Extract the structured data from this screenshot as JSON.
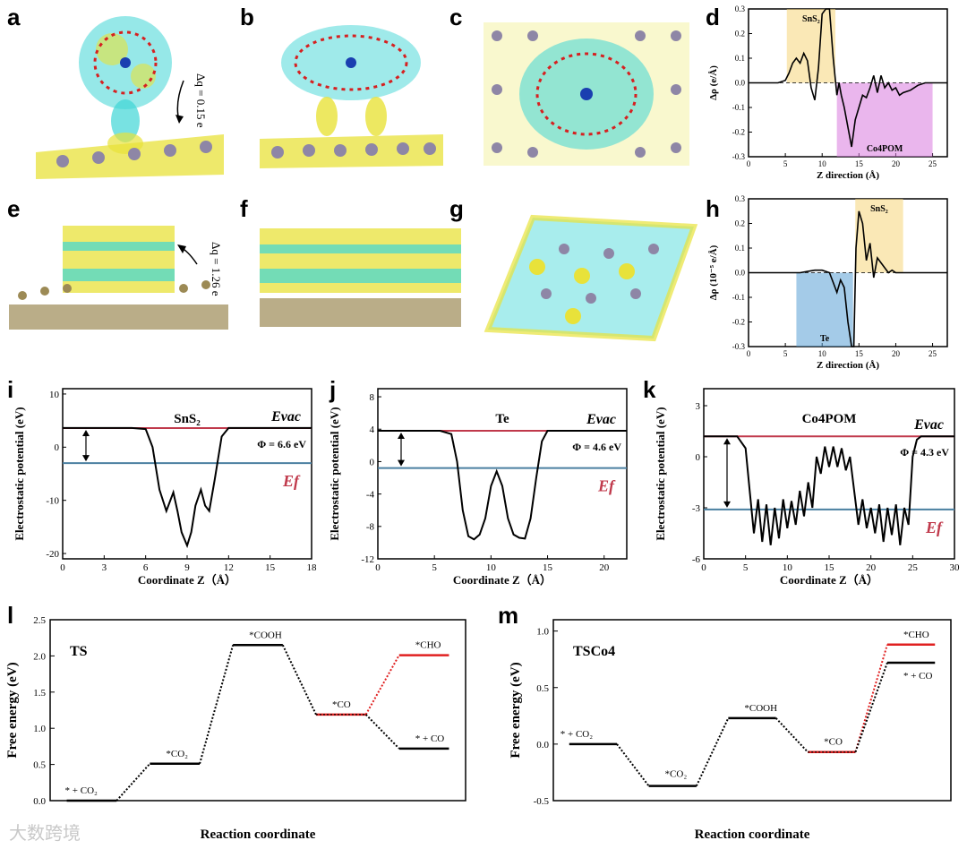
{
  "panels": {
    "a": "a",
    "b": "b",
    "c": "c",
    "d": "d",
    "e": "e",
    "f": "f",
    "g": "g",
    "h": "h",
    "i": "i",
    "j": "j",
    "k": "k",
    "l": "l",
    "m": "m"
  },
  "annotations": {
    "a_charge": "Δq = 0.15 e",
    "e_charge": "Δq = 1.26 e"
  },
  "watermark": "大数跨境",
  "colors": {
    "yellow_iso": "#e8e23a",
    "cyan_iso": "#3fd6d6",
    "sulfur": "#dede2a",
    "tin": "#8e86a6",
    "te": "#9c8a55",
    "oxygen": "#d62020",
    "evac_line": "#c0394b",
    "ef_line": "#4a7fa0",
    "red_path": "#e02020",
    "snS2_band": "#f5d67a",
    "co4pom_band": "#d87adf",
    "te_band": "#5aa0d6"
  },
  "chart_data": [
    {
      "id": "d",
      "type": "line",
      "xlabel": "Z direction (Å)",
      "ylabel": "Δρ (e/Å)",
      "xlim": [
        0,
        27
      ],
      "ylim": [
        -0.3,
        0.3
      ],
      "xticks": [
        "0",
        "5",
        "10",
        "15",
        "20",
        "25"
      ],
      "yticks": [
        "0.3",
        "0.2",
        "0.1",
        "0.0",
        "-0.1",
        "-0.2",
        "-0.3"
      ],
      "bands": [
        {
          "label": "SnS₂",
          "from": 5.2,
          "to": 11.8,
          "sign": "pos"
        },
        {
          "label": "Co4POM",
          "from": 12,
          "to": 25,
          "sign": "neg"
        }
      ],
      "x": [
        0,
        4,
        5,
        5.5,
        6,
        6.5,
        7,
        7.5,
        8,
        8.5,
        9,
        9.5,
        10,
        10.5,
        11,
        11.5,
        12,
        12.3,
        12.6,
        13,
        13.5,
        14,
        14.5,
        15,
        15.5,
        16,
        16.5,
        17,
        17.5,
        18,
        18.5,
        19,
        19.5,
        20,
        20.5,
        21,
        22,
        23,
        24,
        25,
        26,
        27
      ],
      "y": [
        0,
        0,
        0.01,
        0.04,
        0.08,
        0.1,
        0.08,
        0.12,
        0.09,
        -0.02,
        -0.07,
        0.06,
        0.28,
        0.3,
        0.3,
        0.1,
        -0.05,
        0.0,
        -0.05,
        -0.1,
        -0.18,
        -0.26,
        -0.15,
        -0.1,
        -0.05,
        -0.06,
        -0.02,
        0.03,
        -0.04,
        0.03,
        -0.02,
        0.0,
        -0.03,
        -0.02,
        -0.05,
        -0.04,
        -0.03,
        -0.01,
        0,
        0.0,
        0,
        0
      ]
    },
    {
      "id": "h",
      "type": "line",
      "xlabel": "Z direction (Å)",
      "ylabel": "Δρ (10⁻⁵ e/Å)",
      "xlim": [
        0,
        27
      ],
      "ylim": [
        -0.3,
        0.3
      ],
      "xticks": [
        "0",
        "5",
        "10",
        "15",
        "20",
        "25"
      ],
      "yticks": [
        "0.3",
        "0.2",
        "0.1",
        "0.0",
        "-0.1",
        "-0.2",
        "-0.3"
      ],
      "bands": [
        {
          "label": "SnS₂",
          "from": 14.5,
          "to": 21,
          "sign": "pos"
        },
        {
          "label": "Te",
          "from": 6.5,
          "to": 14.2,
          "sign": "neg"
        }
      ],
      "x": [
        0,
        5,
        7,
        8,
        9,
        10,
        11,
        11.5,
        12,
        12.5,
        13,
        13.5,
        14,
        14.3,
        14.6,
        15,
        15.5,
        16,
        16.5,
        17,
        17.5,
        18,
        18.5,
        19,
        19.5,
        20,
        21,
        22,
        23,
        24,
        25,
        26,
        27
      ],
      "y": [
        0,
        0,
        0,
        0.005,
        0.01,
        0.01,
        0.0,
        -0.04,
        -0.08,
        -0.03,
        -0.06,
        -0.2,
        -0.3,
        -0.3,
        0.1,
        0.25,
        0.2,
        0.05,
        0.12,
        -0.02,
        0.06,
        0.04,
        0.02,
        0.0,
        0.01,
        0.0,
        0.0,
        0,
        0,
        0,
        0,
        0,
        0
      ]
    },
    {
      "id": "i",
      "type": "line",
      "title": "SnS₂",
      "xlabel": "Coordinate Z（Å）",
      "ylabel": "Electrostatic potential (eV)",
      "xlim": [
        0,
        18
      ],
      "ylim": [
        -21,
        11
      ],
      "xticks": [
        "0",
        "3",
        "6",
        "9",
        "12",
        "15",
        "18"
      ],
      "yticks": [
        "10",
        "0",
        "-10",
        "-20"
      ],
      "evac": 3.6,
      "ef": -3.0,
      "evac_label": "Evac",
      "ef_label": "Ef",
      "phi_label": "Φ = 6.6 eV",
      "x": [
        0,
        5,
        6,
        6.5,
        7,
        7.5,
        8,
        8.3,
        8.6,
        9,
        9.3,
        9.6,
        10,
        10.3,
        10.6,
        11,
        11.5,
        12,
        13,
        18
      ],
      "y": [
        3.6,
        3.6,
        3.4,
        0,
        -8,
        -12,
        -8.5,
        -12,
        -16,
        -18.5,
        -16,
        -11,
        -8,
        -11,
        -12,
        -6,
        2,
        3.6,
        3.6,
        3.6
      ]
    },
    {
      "id": "j",
      "type": "line",
      "title": "Te",
      "xlabel": "Coordinate Z（Å）",
      "ylabel": "Electrostatic potential (eV)",
      "xlim": [
        0,
        22
      ],
      "ylim": [
        -12,
        9
      ],
      "xticks": [
        "0",
        "5",
        "10",
        "15",
        "20"
      ],
      "yticks": [
        "8",
        "4",
        "0",
        "-4",
        "-8",
        "-12"
      ],
      "evac": 3.8,
      "ef": -0.8,
      "evac_label": "Evac",
      "ef_label": "Ef",
      "phi_label": "Φ = 4.6 eV",
      "x": [
        0,
        5.5,
        6.5,
        7,
        7.5,
        8,
        8.5,
        9,
        9.5,
        10,
        10.5,
        11,
        11.5,
        12,
        12.5,
        13,
        13.5,
        14,
        14.5,
        15,
        16,
        22
      ],
      "y": [
        3.8,
        3.8,
        3.4,
        0,
        -6,
        -9.2,
        -9.6,
        -9.0,
        -7,
        -3,
        -1.2,
        -3,
        -7,
        -9,
        -9.4,
        -9.5,
        -7,
        -2,
        2.5,
        3.8,
        3.8,
        3.8
      ],
      "phi_note": "arrow between Evac and Ef"
    },
    {
      "id": "k",
      "type": "line",
      "title": "Co4POM",
      "xlabel": "Coordinate Z（Å）",
      "ylabel": "Electrostatic potential (eV)",
      "xlim": [
        0,
        30
      ],
      "ylim": [
        -6,
        4
      ],
      "xticks": [
        "0",
        "5",
        "10",
        "15",
        "20",
        "25",
        "30"
      ],
      "yticks": [
        "3",
        "0",
        "-3",
        "-6"
      ],
      "evac": 1.2,
      "ef": -3.1,
      "evac_label": "Evac",
      "ef_label": "Ef",
      "phi_label": "Φ = 4.3 eV",
      "x": [
        0,
        4,
        5,
        5.5,
        6,
        6.5,
        7,
        7.5,
        8,
        8.5,
        9,
        9.5,
        10,
        10.5,
        11,
        11.5,
        12,
        12.5,
        13,
        13.5,
        14,
        14.5,
        15,
        15.5,
        16,
        16.5,
        17,
        17.5,
        18,
        18.5,
        19,
        19.5,
        20,
        20.5,
        21,
        21.5,
        22,
        22.5,
        23,
        23.5,
        24,
        24.5,
        25,
        25.5,
        26,
        30
      ],
      "y": [
        1.2,
        1.2,
        0.5,
        -2,
        -4.5,
        -2.5,
        -5,
        -2.8,
        -5.2,
        -3,
        -4.8,
        -2.5,
        -4.2,
        -2.6,
        -4,
        -2,
        -3.5,
        -1.5,
        -3,
        0,
        -1,
        0.6,
        -0.6,
        0.6,
        -0.6,
        0.5,
        -0.8,
        0,
        -2,
        -4,
        -2.5,
        -4.2,
        -3,
        -4.5,
        -2.8,
        -5,
        -3,
        -4.6,
        -2.8,
        -5.2,
        -3,
        -4,
        0,
        1,
        1.2,
        1.2
      ]
    },
    {
      "id": "l",
      "type": "line",
      "title": "TS",
      "xlabel": "Reaction coordinate",
      "ylabel": "Free energy (eV)",
      "ylim": [
        0,
        2.5
      ],
      "yticks": [
        "0.0",
        "0.5",
        "1.0",
        "1.5",
        "2.0",
        "2.5"
      ],
      "states": [
        {
          "label": "* + CO₂",
          "value": 0.0
        },
        {
          "label": "*CO₂",
          "value": 0.51
        },
        {
          "label": "*COOH",
          "value": 2.15
        },
        {
          "label": "*CO",
          "value": 1.19
        },
        {
          "label": "*CHO",
          "value": 2.01
        },
        {
          "label": "* + CO",
          "value": 0.72
        }
      ]
    },
    {
      "id": "m",
      "type": "line",
      "title": "TSCo4",
      "xlabel": "Reaction coordinate",
      "ylabel": "Free energy (eV)",
      "ylim": [
        -0.5,
        1.1
      ],
      "yticks": [
        "1.0",
        "0.5",
        "0.0",
        "-0.5"
      ],
      "states": [
        {
          "label": "* + CO₂",
          "value": 0.0
        },
        {
          "label": "*CO₂",
          "value": -0.37
        },
        {
          "label": "*COOH",
          "value": 0.23
        },
        {
          "label": "*CO",
          "value": -0.07
        },
        {
          "label": "*CHO",
          "value": 0.88
        },
        {
          "label": "* + CO",
          "value": 0.72
        }
      ]
    }
  ]
}
